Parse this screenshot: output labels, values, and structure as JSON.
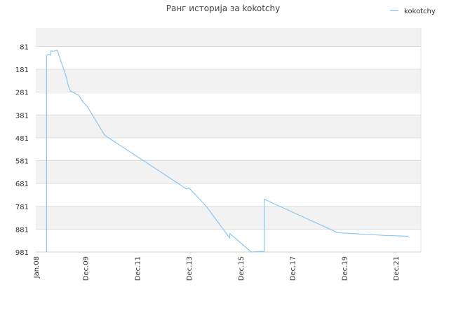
{
  "chart_data": {
    "type": "line",
    "title": "Ранг историја за kokotchy",
    "xlabel": "",
    "ylabel": "",
    "legend": {
      "position": "top-right",
      "entries": [
        "kokotchy"
      ]
    },
    "x_ticks": [
      "Jan.08",
      "Dec.09",
      "Dec.11",
      "Dec.13",
      "Dec.15",
      "Dec.17",
      "Dec.19",
      "Dec.21"
    ],
    "y_ticks": [
      "81",
      "181",
      "281",
      "381",
      "481",
      "581",
      "681",
      "781",
      "881",
      "981"
    ],
    "y_range": {
      "top": 0,
      "bottom": 981,
      "inverted": true
    },
    "x_range": [
      "2008-01",
      "2022-11"
    ],
    "grid": true,
    "series": [
      {
        "name": "kokotchy",
        "color": "#8cc8f0",
        "points": [
          {
            "x": "2008-06",
            "y": 981
          },
          {
            "x": "2008-06",
            "y": 120
          },
          {
            "x": "2008-07",
            "y": 115
          },
          {
            "x": "2008-08",
            "y": 120
          },
          {
            "x": "2008-08",
            "y": 100
          },
          {
            "x": "2008-09",
            "y": 102
          },
          {
            "x": "2008-10",
            "y": 100
          },
          {
            "x": "2008-11",
            "y": 98
          },
          {
            "x": "2009-03",
            "y": 210
          },
          {
            "x": "2009-04",
            "y": 250
          },
          {
            "x": "2009-05",
            "y": 275
          },
          {
            "x": "2009-09",
            "y": 295
          },
          {
            "x": "2009-11",
            "y": 325
          },
          {
            "x": "2010-01",
            "y": 345
          },
          {
            "x": "2010-09",
            "y": 470
          },
          {
            "x": "2013-11",
            "y": 705
          },
          {
            "x": "2013-12",
            "y": 700
          },
          {
            "x": "2014-08",
            "y": 780
          },
          {
            "x": "2015-07",
            "y": 920
          },
          {
            "x": "2015-07",
            "y": 900
          },
          {
            "x": "2016-05",
            "y": 981
          },
          {
            "x": "2016-10",
            "y": 978
          },
          {
            "x": "2016-11",
            "y": 981
          },
          {
            "x": "2016-11",
            "y": 750
          },
          {
            "x": "2019-09",
            "y": 896
          },
          {
            "x": "2021-06",
            "y": 908
          },
          {
            "x": "2022-06",
            "y": 912
          }
        ]
      }
    ]
  }
}
